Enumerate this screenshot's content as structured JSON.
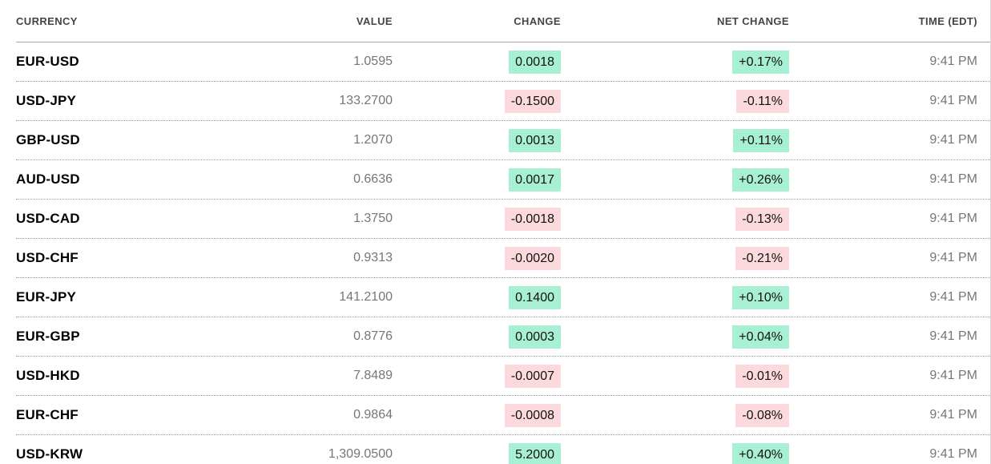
{
  "table": {
    "columns": [
      {
        "key": "currency",
        "label": "CURRENCY"
      },
      {
        "key": "value",
        "label": "VALUE"
      },
      {
        "key": "change",
        "label": "CHANGE"
      },
      {
        "key": "net_change",
        "label": "NET CHANGE"
      },
      {
        "key": "time",
        "label": "TIME (EDT)"
      }
    ],
    "colors": {
      "positive_bg": "#a7f0d4",
      "negative_bg": "#fcd9dc",
      "pair_text": "#000000",
      "value_text": "#767676",
      "header_text": "#454545"
    },
    "rows": [
      {
        "currency": "EUR-USD",
        "value": "1.0595",
        "change": "0.0018",
        "net_change": "+0.17%",
        "time": "9:41 PM",
        "direction": "up"
      },
      {
        "currency": "USD-JPY",
        "value": "133.2700",
        "change": "-0.1500",
        "net_change": "-0.11%",
        "time": "9:41 PM",
        "direction": "down"
      },
      {
        "currency": "GBP-USD",
        "value": "1.2070",
        "change": "0.0013",
        "net_change": "+0.11%",
        "time": "9:41 PM",
        "direction": "up"
      },
      {
        "currency": "AUD-USD",
        "value": "0.6636",
        "change": "0.0017",
        "net_change": "+0.26%",
        "time": "9:41 PM",
        "direction": "up"
      },
      {
        "currency": "USD-CAD",
        "value": "1.3750",
        "change": "-0.0018",
        "net_change": "-0.13%",
        "time": "9:41 PM",
        "direction": "down"
      },
      {
        "currency": "USD-CHF",
        "value": "0.9313",
        "change": "-0.0020",
        "net_change": "-0.21%",
        "time": "9:41 PM",
        "direction": "down"
      },
      {
        "currency": "EUR-JPY",
        "value": "141.2100",
        "change": "0.1400",
        "net_change": "+0.10%",
        "time": "9:41 PM",
        "direction": "up"
      },
      {
        "currency": "EUR-GBP",
        "value": "0.8776",
        "change": "0.0003",
        "net_change": "+0.04%",
        "time": "9:41 PM",
        "direction": "up"
      },
      {
        "currency": "USD-HKD",
        "value": "7.8489",
        "change": "-0.0007",
        "net_change": "-0.01%",
        "time": "9:41 PM",
        "direction": "down"
      },
      {
        "currency": "EUR-CHF",
        "value": "0.9864",
        "change": "-0.0008",
        "net_change": "-0.08%",
        "time": "9:41 PM",
        "direction": "down"
      },
      {
        "currency": "USD-KRW",
        "value": "1,309.0500",
        "change": "5.2000",
        "net_change": "+0.40%",
        "time": "9:41 PM",
        "direction": "up"
      }
    ]
  }
}
